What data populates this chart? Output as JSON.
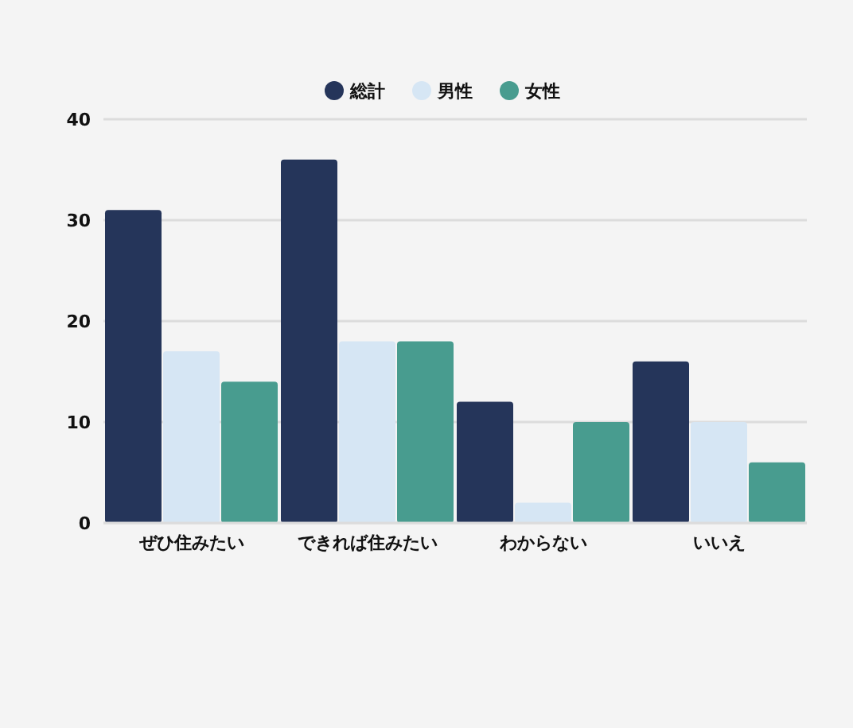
{
  "chart_data": {
    "type": "bar",
    "categories": [
      "ぜひ住みたい",
      "できれば住みたい",
      "わからない",
      "いいえ"
    ],
    "series": [
      {
        "name": "総計",
        "color": "#25355a",
        "values": [
          31,
          36,
          12,
          16
        ]
      },
      {
        "name": "男性",
        "color": "#d6e6f4",
        "values": [
          17,
          18,
          2,
          10
        ]
      },
      {
        "name": "女性",
        "color": "#489c8f",
        "values": [
          14,
          18,
          10,
          6
        ]
      }
    ],
    "ylim": [
      0,
      40
    ],
    "yticks": [
      0,
      10,
      20,
      30,
      40
    ],
    "grid": "y",
    "legend": "top"
  }
}
